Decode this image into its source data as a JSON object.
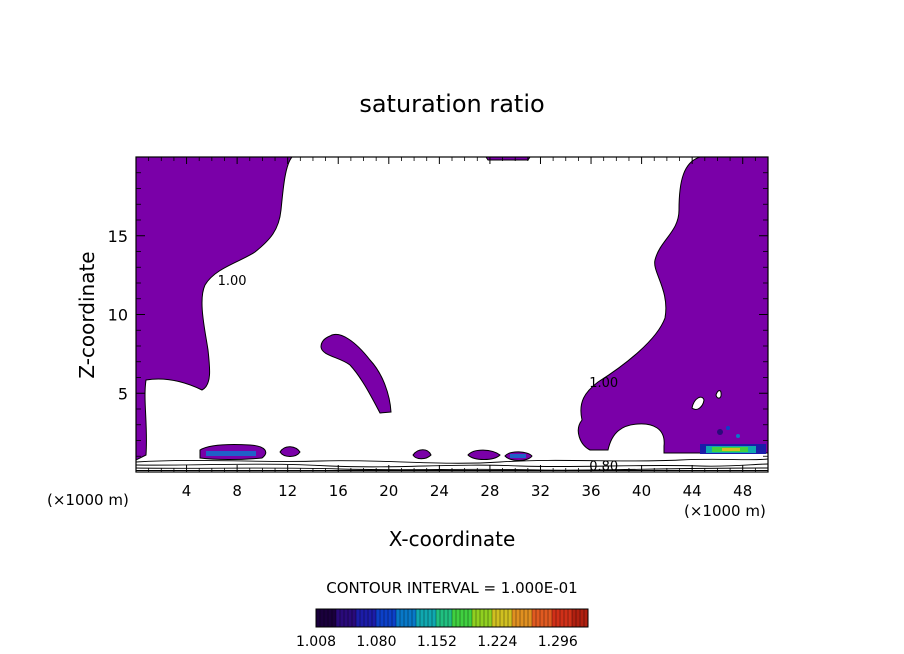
{
  "chart_data": {
    "type": "heatmap",
    "title": "saturation ratio",
    "xlabel": "X-coordinate",
    "ylabel": "Z-coordinate",
    "x_unit": "(×1000 m)",
    "x_unit_right": "(×1000 m)",
    "xlim": [
      0,
      50
    ],
    "ylim": [
      0,
      20
    ],
    "x_ticks": [
      "4",
      "8",
      "12",
      "16",
      "20",
      "24",
      "28",
      "32",
      "36",
      "40",
      "44",
      "48"
    ],
    "x_tick_values": [
      4,
      8,
      12,
      16,
      20,
      24,
      28,
      32,
      36,
      40,
      44,
      48
    ],
    "y_ticks": [
      "5",
      "10",
      "15"
    ],
    "y_tick_values": [
      5,
      10,
      15
    ],
    "contour_interval_text": "CONTOUR INTERVAL = 1.000E-01",
    "contour_labels": [
      {
        "text": "1.00",
        "x": 7.6,
        "z": 12.2
      },
      {
        "text": "1.00",
        "x": 37.0,
        "z": 5.7
      },
      {
        "text": "0.80",
        "x": 37.0,
        "z": 0.4
      }
    ],
    "colorbar": {
      "min": 1.008,
      "max": 1.332,
      "tick_labels": [
        "1.008",
        "1.080",
        "1.152",
        "1.224",
        "1.296"
      ],
      "colors": [
        "#1a003c",
        "#2a0a7a",
        "#1c1ca8",
        "#0c40c8",
        "#0878c8",
        "#10a8b0",
        "#20c080",
        "#40d040",
        "#90d020",
        "#d0c020",
        "#e09020",
        "#e05a20",
        "#d03018",
        "#b02010"
      ]
    },
    "fill_color": "#7a00a8"
  }
}
